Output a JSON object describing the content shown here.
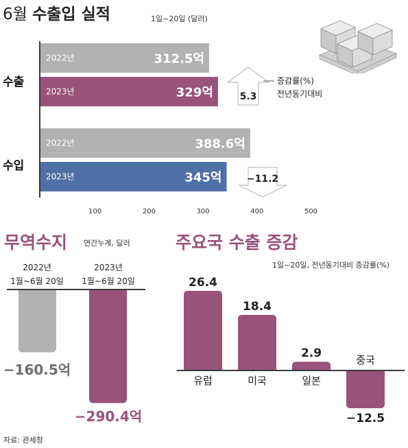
{
  "header": {
    "title_month": "6월",
    "title_main": "수출입 실적",
    "subtitle": "1일~20일 (달러)"
  },
  "source": "자료: 관세청",
  "chart_data": [
    {
      "id": "trade",
      "type": "bar",
      "orientation": "horizontal",
      "xlim": [
        0,
        500
      ],
      "xticks": [
        "100",
        "200",
        "300",
        "400",
        "500"
      ],
      "groups": [
        {
          "label": "수출",
          "bars": [
            {
              "year": "2022년",
              "value": 312.5,
              "label": "312.5억",
              "color": "#b2b2b2"
            },
            {
              "year": "2023년",
              "value": 329,
              "label": "329억",
              "color": "#99527a"
            }
          ],
          "change": {
            "value": 5.3,
            "text": "5.3",
            "direction": "up"
          }
        },
        {
          "label": "수입",
          "bars": [
            {
              "year": "2022년",
              "value": 388.6,
              "label": "388.6억",
              "color": "#b2b2b2"
            },
            {
              "year": "2023년",
              "value": 345,
              "label": "345억",
              "color": "#4f6fa7"
            }
          ],
          "change": {
            "value": -11.2,
            "text": "−11.2",
            "direction": "down"
          }
        }
      ],
      "legend": {
        "line1": "증감률(%)",
        "line2": "전년동기대비"
      }
    },
    {
      "id": "balance",
      "type": "bar",
      "title": "무역수지",
      "subtitle": "연간누계, 달러",
      "categories": [
        "2022년 1월~6월 20일",
        "2023년 1월~6월 20일"
      ],
      "category_lines": [
        [
          "2022년",
          "1월~6월 20일"
        ],
        [
          "2023년",
          "1월~6월 20일"
        ]
      ],
      "values": [
        -160.5,
        -290.4
      ],
      "value_labels": [
        "−160.5억",
        "−290.4억"
      ],
      "colors": [
        "#b2b2b2",
        "#99527a"
      ],
      "ylim": [
        -300,
        0
      ]
    },
    {
      "id": "exports_by_country",
      "type": "bar",
      "title": "주요국 수출 증감",
      "subtitle": "1일~20일, 전년동기대비 증감률(%)",
      "categories": [
        "유럽",
        "미국",
        "일본",
        "중국"
      ],
      "values": [
        26.4,
        18.4,
        2.9,
        -12.5
      ],
      "value_labels": [
        "26.4",
        "18.4",
        "2.9",
        "−12.5"
      ],
      "color": "#99527a",
      "ylim": [
        -14,
        28
      ]
    }
  ],
  "colors": {
    "accent": "#99527a",
    "import_blue": "#4f6fa7",
    "prior_year_gray": "#b2b2b2",
    "axis": "#3a3a3a"
  }
}
